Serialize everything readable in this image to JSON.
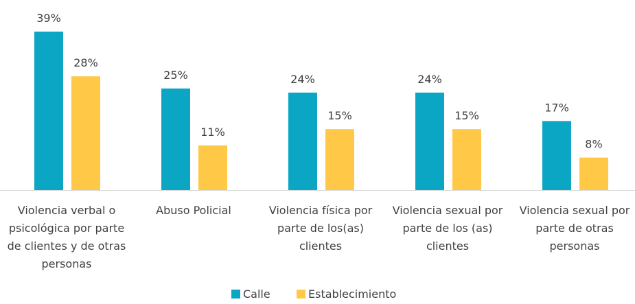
{
  "chart_data": {
    "type": "bar",
    "categories": [
      "Violencia verbal o psicológica por parte de clientes y de otras personas",
      "Abuso Policial",
      "Violencia física por parte de los(as) clientes",
      "Violencia sexual por parte de los (as) clientes",
      "Violencia sexual por parte de otras personas"
    ],
    "series": [
      {
        "name": "Calle",
        "color": "#0ba6c3",
        "values": [
          39,
          25,
          24,
          24,
          17
        ],
        "value_labels": [
          "39%",
          "25%",
          "24%",
          "24%",
          "17%"
        ]
      },
      {
        "name": "Establecimiento",
        "color": "#ffc846",
        "values": [
          28,
          11,
          15,
          15,
          8
        ],
        "value_labels": [
          "28%",
          "11%",
          "15%",
          "15%",
          "8%"
        ]
      }
    ],
    "legend": "bottom"
  }
}
